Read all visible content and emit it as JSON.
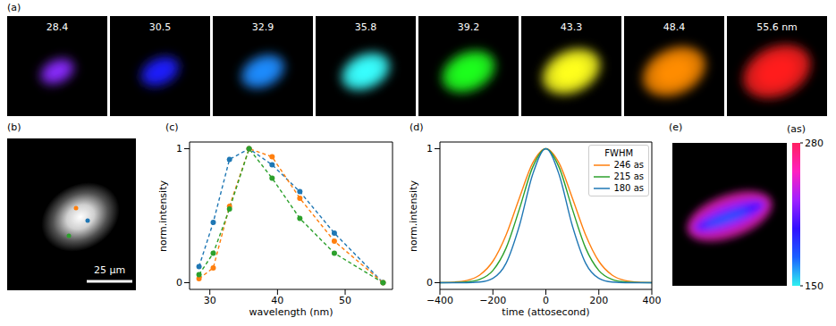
{
  "panel_a": {
    "panel_label": "(a)",
    "tiles": [
      {
        "label": "28.4",
        "color": "#8a2cff"
      },
      {
        "label": "30.5",
        "color": "#1e1eff"
      },
      {
        "label": "32.9",
        "color": "#1e8cff"
      },
      {
        "label": "35.8",
        "color": "#38ffff"
      },
      {
        "label": "39.2",
        "color": "#1eff1e"
      },
      {
        "label": "43.3",
        "color": "#ffff1e"
      },
      {
        "label": "48.4",
        "color": "#ff8c00"
      },
      {
        "label": "55.6 nm",
        "color": "#ff1e1e"
      }
    ]
  },
  "panel_b": {
    "panel_label": "(b)",
    "scale_bar": "25 µm",
    "points": [
      {
        "color": "#ff7f0e"
      },
      {
        "color": "#1f77b4"
      },
      {
        "color": "#2ca02c"
      }
    ]
  },
  "chart_data": [
    {
      "panel_label": "(c)",
      "type": "line",
      "x_label": "wavelength (nm)",
      "y_label": "norm.intensity",
      "x": [
        28.4,
        30.5,
        32.9,
        35.8,
        39.2,
        43.3,
        48.4,
        55.6
      ],
      "xlim": [
        27,
        57
      ],
      "xticks": [
        30,
        40,
        50
      ],
      "ylim": [
        -0.05,
        1.05
      ],
      "yticks": [
        0,
        1
      ],
      "line_style": "dashed",
      "marker": "circle",
      "series": [
        {
          "color": "#1f77b4",
          "values": [
            0.12,
            0.45,
            0.92,
            1,
            0.88,
            0.68,
            0.37,
            0
          ]
        },
        {
          "color": "#ff7f0e",
          "values": [
            0.03,
            0.11,
            0.57,
            1,
            0.94,
            0.63,
            0.31,
            0
          ]
        },
        {
          "color": "#2ca02c",
          "values": [
            0.06,
            0.22,
            0.55,
            1,
            0.78,
            0.48,
            0.22,
            0
          ]
        }
      ]
    },
    {
      "panel_label": "(d)",
      "type": "line",
      "x_label": "time (attosecond)",
      "y_label": "norm.intensity",
      "x": [
        -400,
        -350,
        -300,
        -250,
        -200,
        -150,
        -100,
        -50,
        0,
        50,
        100,
        150,
        200,
        250,
        300,
        350,
        400
      ],
      "xlim": [
        -400,
        400
      ],
      "xticks": [
        {
          "value": -400,
          "label": "−400"
        },
        {
          "value": -200,
          "label": "−200"
        },
        0,
        200,
        400
      ],
      "ylim": [
        -0.05,
        1.05
      ],
      "yticks": [
        0,
        1
      ],
      "line_style": "solid",
      "legend": "upper right",
      "legend_title": "FWHM",
      "series": [
        {
          "name": "246 as",
          "color": "#ff7f0e",
          "values": [
            0.001,
            0.004,
            0.016,
            0.057,
            0.16,
            0.357,
            0.632,
            0.892,
            1,
            0.892,
            0.632,
            0.357,
            0.16,
            0.057,
            0.016,
            0.004,
            0.001
          ]
        },
        {
          "name": "215 as",
          "color": "#2ca02c",
          "values": [
            0,
            0.001,
            0.005,
            0.024,
            0.091,
            0.259,
            0.549,
            0.861,
            1,
            0.861,
            0.549,
            0.259,
            0.091,
            0.024,
            0.005,
            0.001,
            0
          ]
        },
        {
          "name": "180 as",
          "color": "#1f77b4",
          "values": [
            0,
            0,
            0,
            0.005,
            0.033,
            0.146,
            0.425,
            0.807,
            1,
            0.807,
            0.425,
            0.146,
            0.033,
            0.005,
            0,
            0,
            0
          ]
        }
      ]
    }
  ],
  "panel_e": {
    "panel_label": "(e)",
    "colorbar": {
      "title": "(as)",
      "range": [
        150,
        280
      ],
      "ticks": [
        150,
        280
      ],
      "colors": [
        "#30f0f0",
        "#1a60ff",
        "#3010ff",
        "#a020ff",
        "#ff20c0",
        "#ff2060"
      ]
    }
  }
}
